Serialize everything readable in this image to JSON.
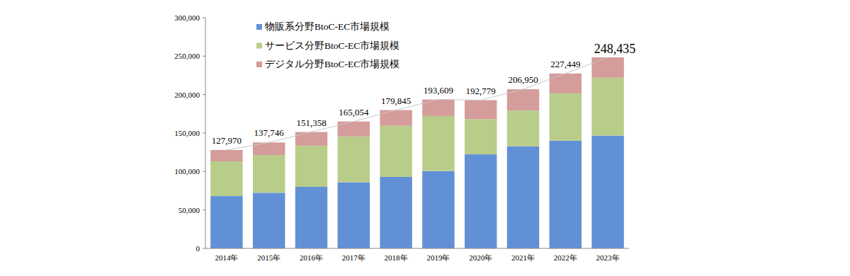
{
  "chart_data": {
    "type": "bar",
    "stacked": true,
    "grid": false,
    "legend": "top-left",
    "categories": [
      "2014年",
      "2015年",
      "2016年",
      "2017年",
      "2018年",
      "2019年",
      "2020年",
      "2021年",
      "2022年",
      "2023年"
    ],
    "series": [
      {
        "name": "物販系分野BtoC-EC市場規模",
        "color": "#6290d6",
        "values": [
          68043,
          72398,
          80043,
          86008,
          92992,
          100515,
          122333,
          132865,
          139997,
          146760
        ]
      },
      {
        "name": "サービス分野BtoC-EC市場規模",
        "color": "#b9cd8b",
        "values": [
          45133,
          49014,
          53532,
          59568,
          66471,
          71672,
          45832,
          46424,
          61477,
          75169
        ]
      },
      {
        "name": "デジタル分野BtoC-EC市場規模",
        "color": "#d49c9a",
        "values": [
          14794,
          16334,
          17782,
          19478,
          20382,
          21422,
          24614,
          27661,
          25974,
          26506
        ]
      }
    ],
    "totals": [
      127970,
      137746,
      151358,
      165054,
      179845,
      193609,
      192779,
      206950,
      227449,
      248435
    ],
    "total_labels": [
      "127,970",
      "137,746",
      "151,358",
      "165,054",
      "179,845",
      "193,609",
      "192,779",
      "206,950",
      "227,449",
      "248,435"
    ],
    "ylim": [
      0,
      300000
    ],
    "yticks": [
      0,
      {
        "value": 50000,
        "label": "50,000"
      },
      {
        "value": 100000,
        "label": "100,000"
      },
      {
        "value": 150000,
        "label": "150,000"
      },
      {
        "value": 200000,
        "label": "200,000"
      },
      {
        "value": 250000,
        "label": "250,000"
      },
      {
        "value": 300000,
        "label": "300,000"
      }
    ]
  }
}
